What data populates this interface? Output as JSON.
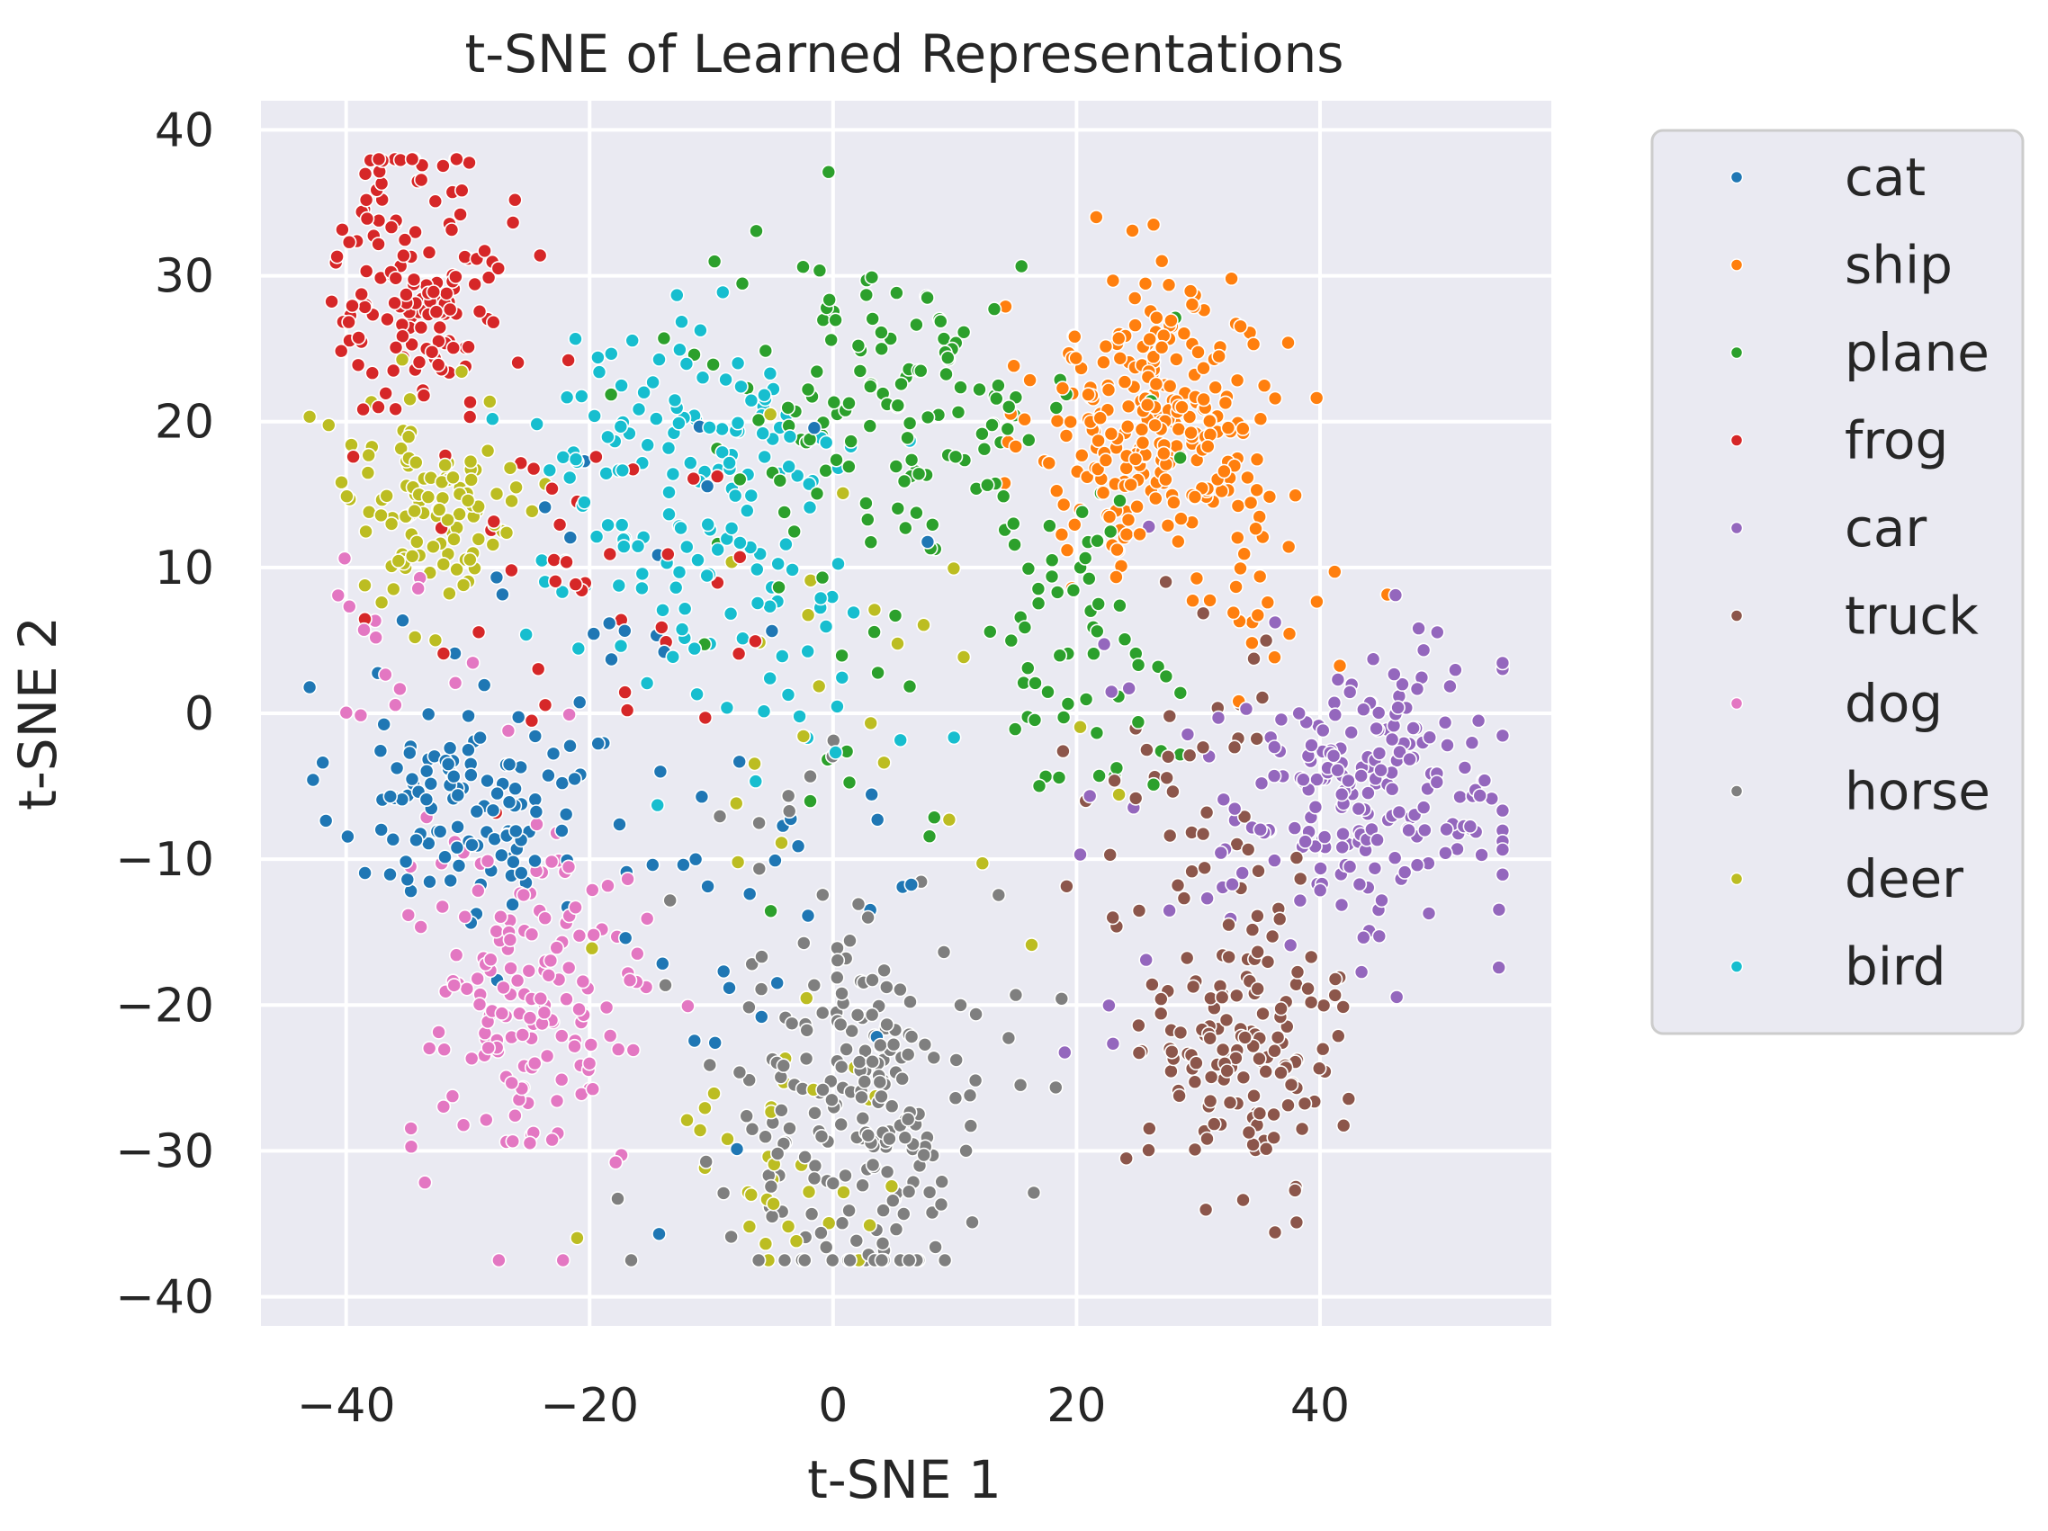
{
  "chart_data": {
    "type": "scatter",
    "title": "t-SNE of Learned Representations",
    "xlabel": "t-SNE 1",
    "ylabel": "t-SNE 2",
    "xlim": [
      -47,
      59
    ],
    "ylim": [
      -42,
      42
    ],
    "xticks": [
      -40,
      -20,
      0,
      20,
      40
    ],
    "yticks": [
      -40,
      -30,
      -20,
      -10,
      0,
      10,
      20,
      30,
      40
    ],
    "xtick_labels": [
      "−40",
      "−20",
      "0",
      "20",
      "40"
    ],
    "ytick_labels": [
      "−40",
      "−30",
      "−20",
      "−10",
      "0",
      "10",
      "20",
      "30",
      "40"
    ],
    "grid": true,
    "legend_position": "outside right",
    "background": "#eaeaf2",
    "series": [
      {
        "name": "cat",
        "color": "#1f77b4",
        "clusters": [
          {
            "cx": -31,
            "cy": -6,
            "sx": 5,
            "sy": 4,
            "n": 110
          },
          {
            "cx": -18,
            "cy": 4,
            "sx": 8,
            "sy": 10,
            "n": 35
          },
          {
            "cx": -5,
            "cy": -15,
            "sx": 8,
            "sy": 8,
            "n": 25
          }
        ]
      },
      {
        "name": "ship",
        "color": "#ff7f0e",
        "clusters": [
          {
            "cx": 27,
            "cy": 20,
            "sx": 5,
            "sy": 5,
            "n": 260
          },
          {
            "cx": 35,
            "cy": 8,
            "sx": 6,
            "sy": 4,
            "n": 25
          }
        ]
      },
      {
        "name": "plane",
        "color": "#2ca02c",
        "clusters": [
          {
            "cx": 5,
            "cy": 22,
            "sx": 8,
            "sy": 5,
            "n": 130
          },
          {
            "cx": 20,
            "cy": 5,
            "sx": 4,
            "sy": 5,
            "n": 60
          },
          {
            "cx": 2,
            "cy": 0,
            "sx": 8,
            "sy": 10,
            "n": 20
          }
        ]
      },
      {
        "name": "frog",
        "color": "#d62728",
        "clusters": [
          {
            "cx": -34,
            "cy": 30,
            "sx": 3.5,
            "sy": 5,
            "n": 150
          },
          {
            "cx": -20,
            "cy": 10,
            "sx": 8,
            "sy": 6,
            "n": 40
          }
        ]
      },
      {
        "name": "car",
        "color": "#9467bd",
        "clusters": [
          {
            "cx": 44,
            "cy": -6,
            "sx": 6,
            "sy": 5,
            "n": 200
          },
          {
            "cx": 30,
            "cy": -5,
            "sx": 5,
            "sy": 8,
            "n": 20
          }
        ]
      },
      {
        "name": "truck",
        "color": "#8c564b",
        "clusters": [
          {
            "cx": 34,
            "cy": -22,
            "sx": 4,
            "sy": 5,
            "n": 150
          },
          {
            "cx": 28,
            "cy": -5,
            "sx": 5,
            "sy": 6,
            "n": 35
          }
        ]
      },
      {
        "name": "dog",
        "color": "#e377c2",
        "clusters": [
          {
            "cx": -25,
            "cy": -20,
            "sx": 5,
            "sy": 6,
            "n": 160
          },
          {
            "cx": -37,
            "cy": 5,
            "sx": 3,
            "sy": 4,
            "n": 15
          }
        ]
      },
      {
        "name": "horse",
        "color": "#7f7f7f",
        "clusters": [
          {
            "cx": 3,
            "cy": -28,
            "sx": 5,
            "sy": 6,
            "n": 200
          },
          {
            "cx": -5,
            "cy": -15,
            "sx": 7,
            "sy": 8,
            "n": 25
          }
        ]
      },
      {
        "name": "deer",
        "color": "#bcbd22",
        "clusters": [
          {
            "cx": -33,
            "cy": 14,
            "sx": 4,
            "sy": 4,
            "n": 110
          },
          {
            "cx": -5,
            "cy": -30,
            "sx": 5,
            "sy": 6,
            "n": 35
          },
          {
            "cx": 0,
            "cy": 0,
            "sx": 10,
            "sy": 10,
            "n": 25
          }
        ]
      },
      {
        "name": "bird",
        "color": "#17becf",
        "clusters": [
          {
            "cx": -12,
            "cy": 16,
            "sx": 7,
            "sy": 6,
            "n": 140
          },
          {
            "cx": -6,
            "cy": 3,
            "sx": 6,
            "sy": 4,
            "n": 35
          }
        ]
      }
    ]
  }
}
